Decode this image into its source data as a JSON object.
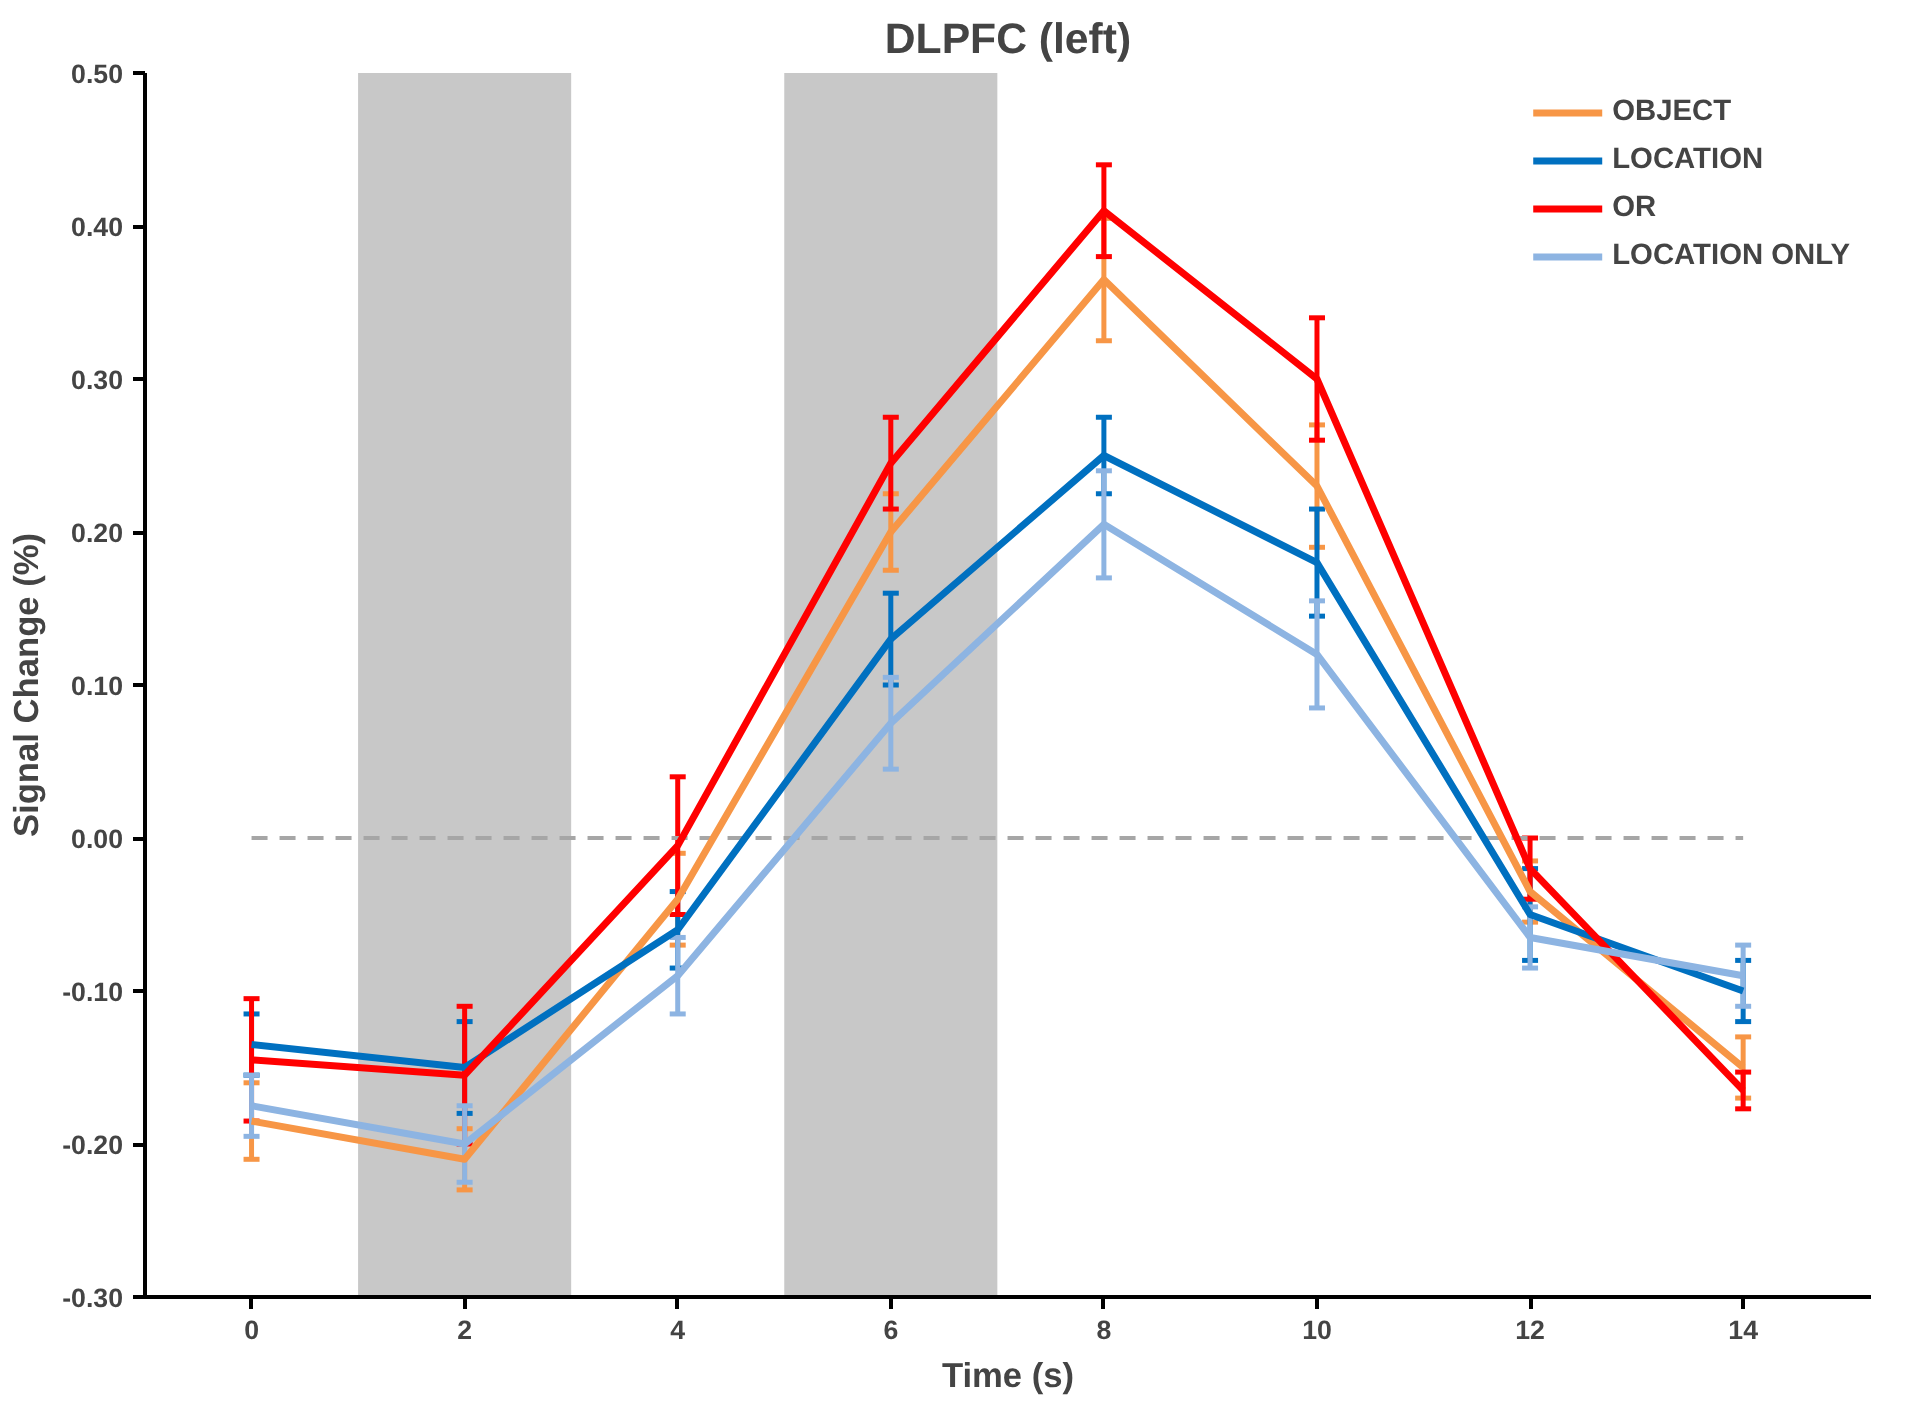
{
  "chart_data": {
    "type": "line",
    "title": "DLPFC (left)",
    "xlabel": "Time (s)",
    "ylabel": "Signal Change (%)",
    "x": [
      0,
      2,
      4,
      6,
      8,
      10,
      12,
      14
    ],
    "xlim": [
      -1,
      15.2
    ],
    "xticks": [
      0,
      2,
      4,
      6,
      8,
      10,
      12,
      14
    ],
    "ylim": [
      -0.3,
      0.5
    ],
    "yticks": [
      {
        "value": -0.3,
        "label": "-0.30"
      },
      {
        "value": -0.2,
        "label": "-0.20"
      },
      {
        "value": -0.1,
        "label": "-0.10"
      },
      {
        "value": 0,
        "label": "0.00"
      },
      {
        "value": 0.1,
        "label": "0.10"
      },
      {
        "value": 0.2,
        "label": "0.20"
      },
      {
        "value": 0.3,
        "label": "0.30"
      },
      {
        "value": 0.4,
        "label": "0.40"
      },
      {
        "value": 0.5,
        "label": "0.50"
      }
    ],
    "grid": false,
    "legend": "top right",
    "marker": "none",
    "line_style": "solid",
    "bands": [
      {
        "axis": "x",
        "from": 1,
        "to": 3,
        "color": "#c8c8c8"
      },
      {
        "axis": "x",
        "from": 5,
        "to": 7,
        "color": "#c8c8c8"
      }
    ],
    "ref_lines": [
      {
        "axis": "y",
        "value": 0,
        "color": "#a6a6a6",
        "line_style": "dashed"
      }
    ],
    "series": [
      {
        "name": "OBJECT",
        "color": "#f79646",
        "values": [
          -0.185,
          -0.21,
          -0.04,
          0.2,
          0.365,
          0.23,
          -0.035,
          -0.15
        ],
        "errors": [
          0.025,
          0.02,
          0.03,
          0.025,
          0.04,
          0.04,
          0.02,
          0.02
        ]
      },
      {
        "name": "LOCATION",
        "color": "#0070c0",
        "values": [
          -0.135,
          -0.15,
          -0.06,
          0.13,
          0.25,
          0.18,
          -0.05,
          -0.1
        ],
        "errors": [
          0.02,
          0.03,
          0.025,
          0.03,
          0.025,
          0.035,
          0.03,
          0.02
        ]
      },
      {
        "name": "OR",
        "color": "#ff0000",
        "values": [
          -0.145,
          -0.155,
          -0.005,
          0.245,
          0.41,
          0.3,
          -0.02,
          -0.165
        ],
        "errors": [
          0.04,
          0.045,
          0.045,
          0.03,
          0.03,
          0.04,
          0.02,
          0.012
        ]
      },
      {
        "name": "LOCATION ONLY",
        "color": "#8db4e2",
        "values": [
          -0.175,
          -0.2,
          -0.09,
          0.075,
          0.205,
          0.12,
          -0.065,
          -0.09
        ],
        "errors": [
          0.02,
          0.025,
          0.025,
          0.03,
          0.035,
          0.035,
          0.02,
          0.02
        ]
      }
    ]
  }
}
